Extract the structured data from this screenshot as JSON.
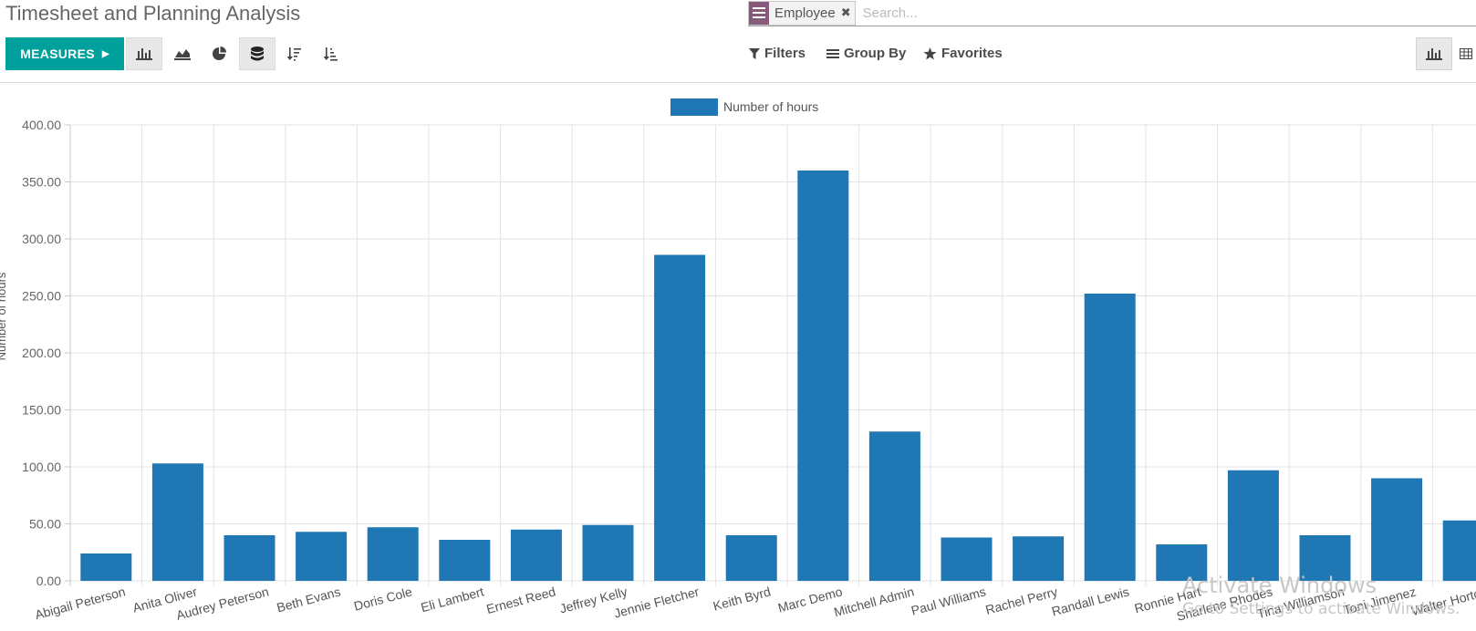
{
  "page": {
    "title": "Timesheet and Planning Analysis"
  },
  "search": {
    "facet_label": "Employee",
    "placeholder": "Search..."
  },
  "toolbar": {
    "measures_label": "MEASURES",
    "tools": [
      {
        "icon": "bar-chart-icon",
        "active": true
      },
      {
        "icon": "line-chart-icon",
        "active": false
      },
      {
        "icon": "pie-chart-icon",
        "active": false
      },
      {
        "icon": "stacked-icon",
        "active": true
      },
      {
        "icon": "sort-descending-icon",
        "active": false
      },
      {
        "icon": "sort-ascending-icon",
        "active": false
      }
    ],
    "filters_label": "Filters",
    "group_by_label": "Group By",
    "favorites_label": "Favorites"
  },
  "views": [
    {
      "icon": "graph-view-icon",
      "active": true
    },
    {
      "icon": "pivot-view-icon",
      "active": false
    }
  ],
  "colors": {
    "bar": "#1f77b4",
    "accent": "#00a09d",
    "facet": "#875a7b"
  },
  "chart_data": {
    "type": "bar",
    "legend": "Number of hours",
    "ylabel": "Number of hours",
    "xlabel": "",
    "ylim": [
      0,
      400
    ],
    "yticks": [
      "0.00",
      "50.00",
      "100.00",
      "150.00",
      "200.00",
      "250.00",
      "300.00",
      "350.00",
      "400.00"
    ],
    "grid": true,
    "categories": [
      "Abigail Peterson",
      "Anita Oliver",
      "Audrey Peterson",
      "Beth Evans",
      "Doris Cole",
      "Eli Lambert",
      "Ernest Reed",
      "Jeffrey Kelly",
      "Jennie Fletcher",
      "Keith Byrd",
      "Marc Demo",
      "Mitchell Admin",
      "Paul Williams",
      "Rachel Perry",
      "Randall Lewis",
      "Ronnie Hart",
      "Sharlene Rhodes",
      "Tina Williamson",
      "Toni Jimenez",
      "Walter Horton"
    ],
    "values": [
      24,
      103,
      40,
      43,
      47,
      36,
      45,
      49,
      286,
      40,
      360,
      131,
      38,
      39,
      252,
      32,
      97,
      40,
      90,
      53
    ]
  },
  "watermark": {
    "line1": "Activate Windows",
    "line2": "Go to Settings to activate Windows."
  }
}
